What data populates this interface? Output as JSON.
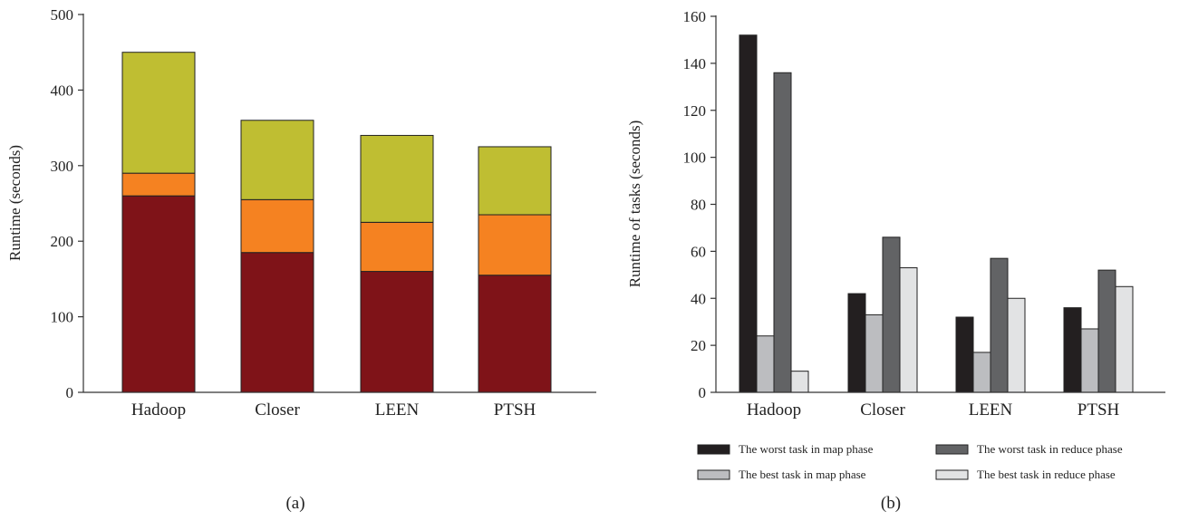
{
  "colors": {
    "axis": "#333333",
    "bar_outline": "#222222"
  },
  "chart_data": [
    {
      "type": "bar",
      "stacked": true,
      "panel_label": "(a)",
      "title": "",
      "xlabel": "",
      "ylabel": "Runtime (seconds)",
      "ylim": [
        0,
        500
      ],
      "yticks": [
        0,
        100,
        200,
        300,
        400,
        500
      ],
      "categories": [
        "Hadoop",
        "Closer",
        "LEEN",
        "PTSH"
      ],
      "grid": false,
      "legend": "none",
      "series": [
        {
          "values": [
            260,
            185,
            160,
            155
          ],
          "color": "#7f1318"
        },
        {
          "values": [
            30,
            70,
            65,
            80
          ],
          "color": "#f58221"
        },
        {
          "values": [
            160,
            105,
            115,
            90
          ],
          "color": "#bfbe32"
        }
      ]
    },
    {
      "type": "bar",
      "stacked": false,
      "panel_label": "(b)",
      "title": "",
      "xlabel": "",
      "ylabel": "Runtime of tasks (seconds)",
      "ylim": [
        0,
        160
      ],
      "yticks": [
        0,
        20,
        40,
        60,
        80,
        100,
        120,
        140,
        160
      ],
      "categories": [
        "Hadoop",
        "Closer",
        "LEEN",
        "PTSH"
      ],
      "grid": false,
      "legend": "bottom",
      "series": [
        {
          "name": "The worst task in map phase",
          "values": [
            152,
            42,
            32,
            36
          ],
          "color": "#231f20"
        },
        {
          "name": "The best task in map phase",
          "values": [
            24,
            33,
            17,
            27
          ],
          "color": "#bcbdc0"
        },
        {
          "name": "The worst task in reduce phase",
          "values": [
            136,
            66,
            57,
            52
          ],
          "color": "#626365"
        },
        {
          "name": "The best task in reduce phase",
          "values": [
            9,
            53,
            40,
            45
          ],
          "color": "#e2e3e4"
        }
      ]
    }
  ]
}
